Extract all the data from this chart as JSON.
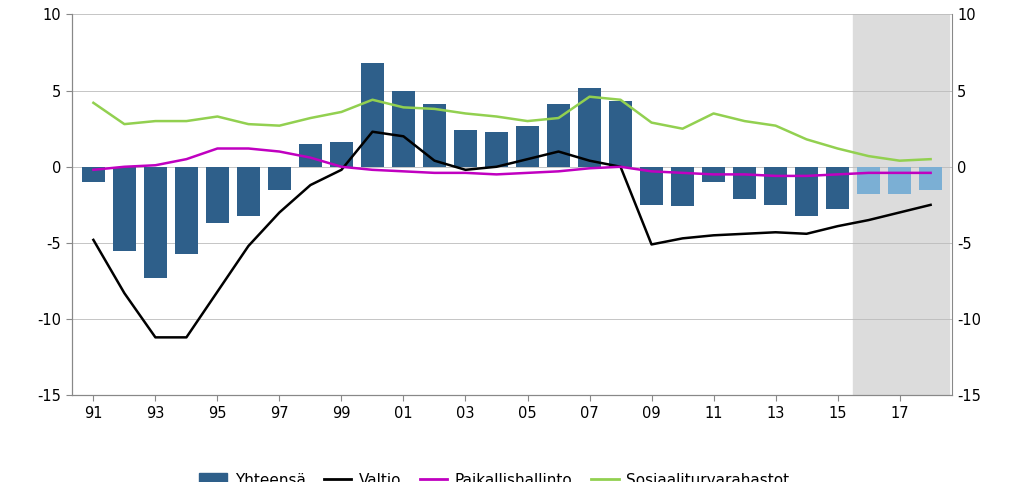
{
  "years": [
    1991,
    1992,
    1993,
    1994,
    1995,
    1996,
    1997,
    1998,
    1999,
    2000,
    2001,
    2002,
    2003,
    2004,
    2005,
    2006,
    2007,
    2008,
    2009,
    2010,
    2011,
    2012,
    2013,
    2014,
    2015,
    2016,
    2017,
    2018
  ],
  "yhteensa": [
    -1.0,
    -5.5,
    -7.3,
    -5.7,
    -3.7,
    -3.2,
    -1.5,
    1.5,
    1.6,
    6.8,
    5.0,
    4.1,
    2.4,
    2.3,
    2.7,
    4.1,
    5.2,
    4.3,
    -2.5,
    -2.6,
    -1.0,
    -2.1,
    -2.5,
    -3.2,
    -2.8,
    -1.8,
    -1.8,
    -1.5
  ],
  "valtio": [
    -4.8,
    -8.3,
    -11.2,
    -11.2,
    -8.2,
    -5.2,
    -3.0,
    -1.2,
    -0.2,
    2.3,
    2.0,
    0.4,
    -0.2,
    0.0,
    0.5,
    1.0,
    0.4,
    0.0,
    -5.1,
    -4.7,
    -4.5,
    -4.4,
    -4.3,
    -4.4,
    -3.9,
    -3.5,
    -3.0,
    -2.5
  ],
  "paikallishallinto": [
    -0.2,
    0.0,
    0.1,
    0.5,
    1.2,
    1.2,
    1.0,
    0.6,
    0.0,
    -0.2,
    -0.3,
    -0.4,
    -0.4,
    -0.5,
    -0.4,
    -0.3,
    -0.1,
    0.0,
    -0.3,
    -0.4,
    -0.5,
    -0.5,
    -0.6,
    -0.6,
    -0.5,
    -0.4,
    -0.4,
    -0.4
  ],
  "sosiaaliturva": [
    4.2,
    2.8,
    3.0,
    3.0,
    3.3,
    2.8,
    2.7,
    3.2,
    3.6,
    4.4,
    3.9,
    3.8,
    3.5,
    3.3,
    3.0,
    3.2,
    4.6,
    4.4,
    2.9,
    2.5,
    3.5,
    3.0,
    2.7,
    1.8,
    1.2,
    0.7,
    0.4,
    0.5
  ],
  "forecast_start_year": 2016,
  "bar_color": "#2E5F8A",
  "bar_color_forecast": "#7BAFD4",
  "valtio_color": "#000000",
  "paikallishallinto_color": "#C000C0",
  "sosiaaliturva_color": "#92D050",
  "forecast_bg_color": "#DCDCDC",
  "ylim": [
    -15,
    10
  ],
  "yticks": [
    -15,
    -10,
    -5,
    0,
    5,
    10
  ],
  "xtick_labels": [
    "91",
    "93",
    "95",
    "97",
    "99",
    "01",
    "03",
    "05",
    "07",
    "09",
    "11",
    "13",
    "15",
    "17"
  ],
  "xtick_years": [
    1991,
    1993,
    1995,
    1997,
    1999,
    2001,
    2003,
    2005,
    2007,
    2009,
    2011,
    2013,
    2015,
    2017
  ],
  "legend_yhteensa": "Yhteensä",
  "legend_valtio": "Valtio",
  "legend_paikallishallinto": "Paikallishallinto",
  "legend_sosiaaliturva": "Sosiaaliturvarahastot"
}
